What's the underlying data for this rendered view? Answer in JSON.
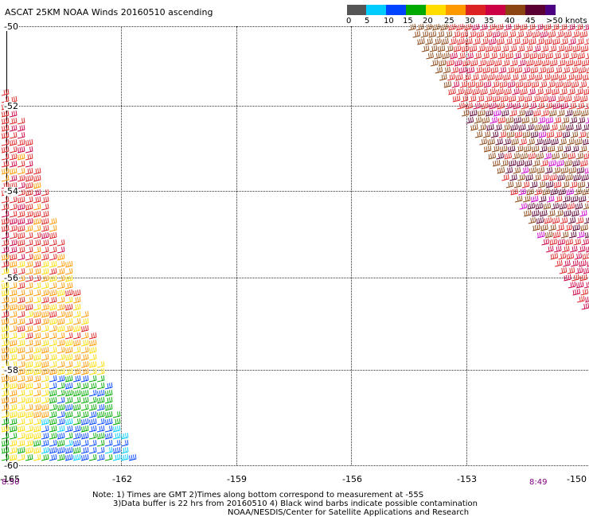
{
  "title": "ASCAT 25KM NOAA Winds 20160510 ascending",
  "legend": {
    "labels": [
      "0",
      "5",
      "10",
      "15",
      "20",
      "25",
      "30",
      "35",
      "40",
      "45",
      ">50 knots"
    ],
    "colors": [
      "#555555",
      "#00ccff",
      "#0044ff",
      "#00aa00",
      "#ffdd00",
      "#ff9900",
      "#dd2222",
      "#cc0044",
      "#8b4513",
      "#5a0033",
      "#4b0082"
    ]
  },
  "lat_labels": [
    "-50",
    "-52",
    "-54",
    "-56",
    "-58",
    "-60"
  ],
  "lon_labels": [
    "-165",
    "-162",
    "-159",
    "-156",
    "-153",
    "-150"
  ],
  "time_labels": [
    "8:50",
    "8:49"
  ],
  "notes": [
    "Note: 1) Times are GMT 2)Times along bottom correspond to measurement at -55S",
    "3)Data buffer is 22 hrs from 20160510 4) Black wind barbs indicate possible contamination",
    "NOAA/NESDIS/Center for Satellite Applications and Research"
  ],
  "colors": {
    "calm": "#555555",
    "light_blue": "#00ccff",
    "blue": "#0044ff",
    "green": "#00aa00",
    "yellow": "#ffdd00",
    "orange": "#ff9900",
    "red": "#dd2222",
    "crimson": "#cc0044",
    "brown": "#8b4513",
    "dark": "#5a0033",
    "violet": "#cc00cc"
  }
}
